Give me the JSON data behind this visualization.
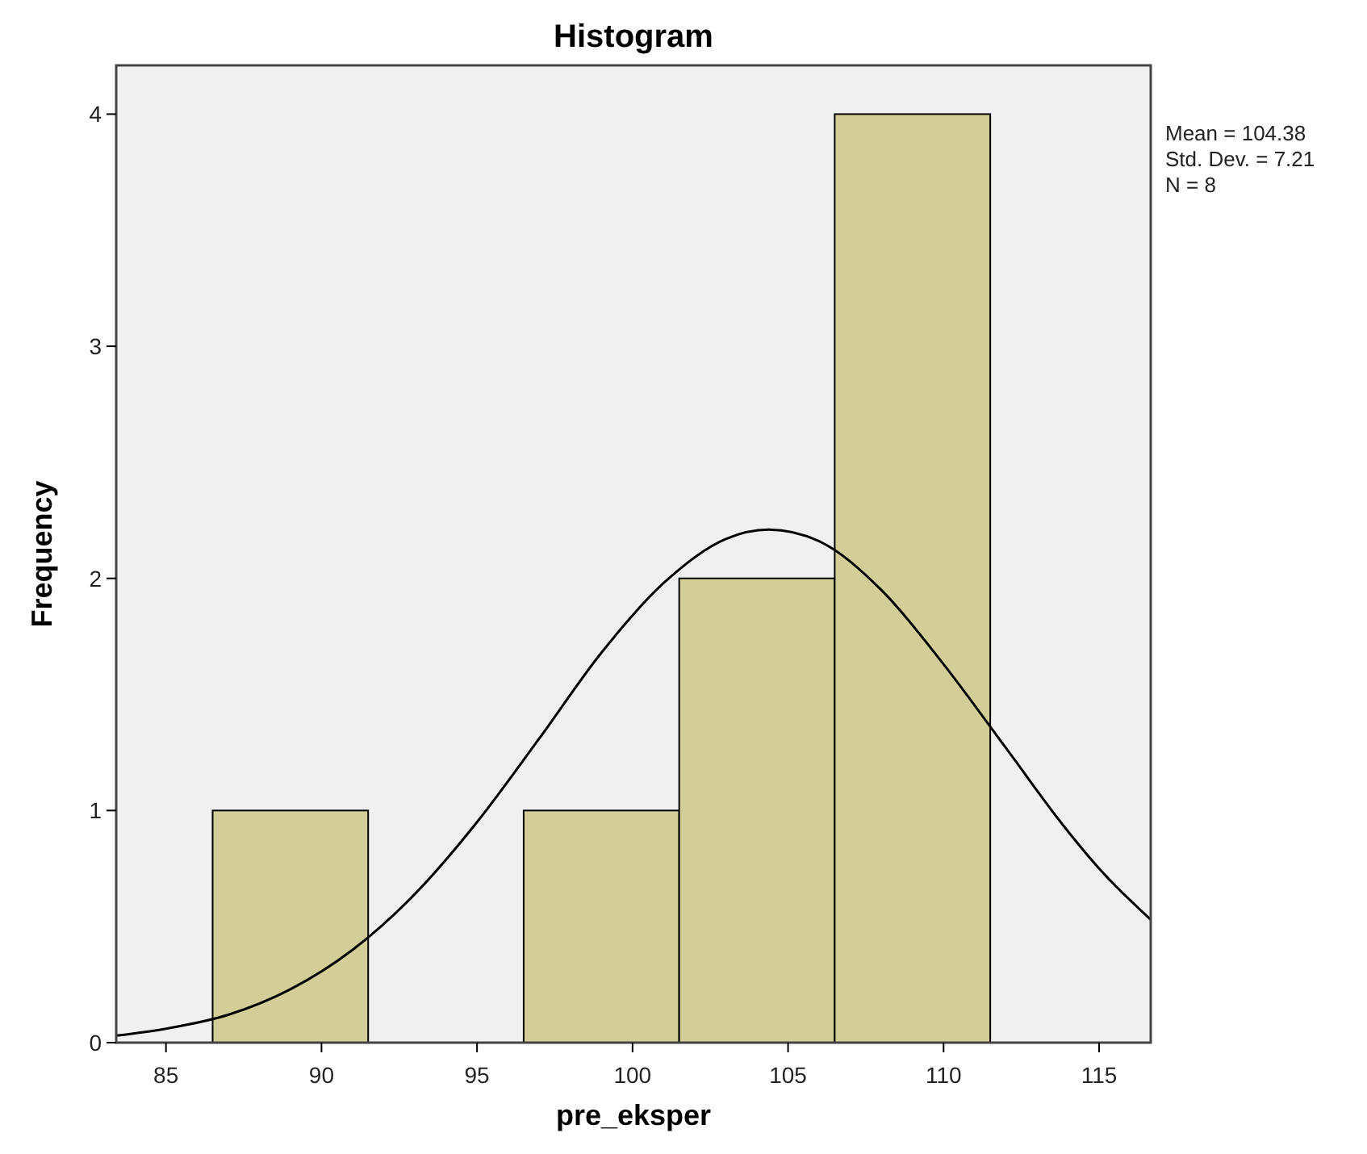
{
  "chart_data": {
    "type": "histogram",
    "title": "Histogram",
    "xlabel": "pre_eksper",
    "ylabel": "Frequency",
    "annotations": [
      "Mean = 104.38",
      "Std. Dev. = 7.21",
      "N = 8"
    ],
    "bins": [
      86.5,
      91.5,
      96.5,
      101.5,
      106.5,
      111.5
    ],
    "values": [
      1,
      0,
      1,
      2,
      4
    ],
    "color": "#d3ce97",
    "series": [
      {
        "type": "line",
        "color": "#000000",
        "x": [
          83.4,
          85,
          87,
          89,
          91,
          93,
          95,
          97,
          99,
          101,
          103,
          104.38,
          106,
          108,
          110,
          112,
          114,
          115,
          116.66
        ],
        "values": [
          0.03,
          0.06,
          0.12,
          0.23,
          0.4,
          0.64,
          0.95,
          1.31,
          1.68,
          1.98,
          2.17,
          2.21,
          2.16,
          1.95,
          1.63,
          1.27,
          0.91,
          0.75,
          0.53
        ]
      }
    ],
    "xlim": [
      83.4,
      116.66
    ],
    "xticks": [
      85,
      90,
      95,
      100,
      105,
      110,
      115
    ],
    "ylim": [
      0,
      4.21
    ],
    "yticks": [
      0,
      1,
      2,
      3,
      4
    ],
    "grid": false
  }
}
